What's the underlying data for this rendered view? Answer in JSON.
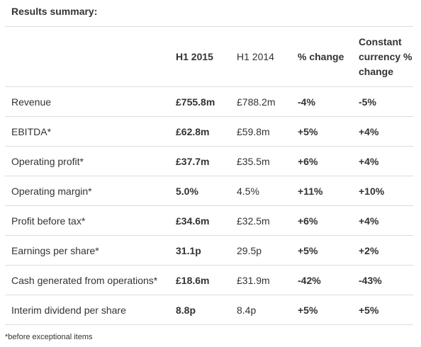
{
  "title": "Results summary:",
  "table": {
    "headers": [
      "",
      "H1 2015",
      "H1 2014",
      "% change",
      "Constant currency % change"
    ],
    "rows": [
      [
        "Revenue",
        "£755.8m",
        "£788.2m",
        "-4%",
        "-5%"
      ],
      [
        "EBITDA*",
        "£62.8m",
        "£59.8m",
        "+5%",
        "+4%"
      ],
      [
        "Operating profit*",
        "£37.7m",
        "£35.5m",
        "+6%",
        "+4%"
      ],
      [
        "Operating margin*",
        "5.0%",
        "4.5%",
        "+11%",
        "+10%"
      ],
      [
        "Profit before tax*",
        "£34.6m",
        "£32.5m",
        "+6%",
        "+4%"
      ],
      [
        "Earnings per share*",
        "31.1p",
        "29.5p",
        "+5%",
        "+2%"
      ],
      [
        "Cash generated from operations*",
        "£18.6m",
        "£31.9m",
        "-42%",
        "-43%"
      ],
      [
        "Interim dividend per share",
        "8.8p",
        "8.4p",
        "+5%",
        "+5%"
      ]
    ]
  },
  "footnote": "*before exceptional items"
}
